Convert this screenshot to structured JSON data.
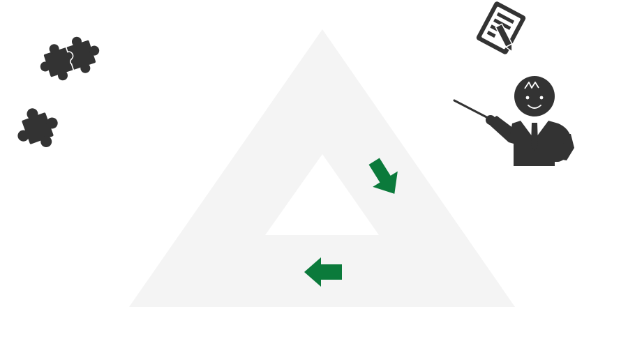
{
  "diagram": {
    "shape": "hollow-triangle-cycle",
    "colors": {
      "background": "#ffffff",
      "triangle_fill": "#f4f4f4",
      "arrow": "#0b7a3b",
      "icon": "#333333",
      "icon_line": "#ffffff"
    },
    "arrows": [
      {
        "name": "arrow-down-right-icon",
        "direction": "down-right"
      },
      {
        "name": "arrow-left-icon",
        "direction": "left"
      }
    ],
    "icons": [
      "puzzle-pieces-connected-icon",
      "puzzle-piece-icon",
      "document-with-pencil-icon",
      "teacher-with-pointer-icon"
    ]
  }
}
